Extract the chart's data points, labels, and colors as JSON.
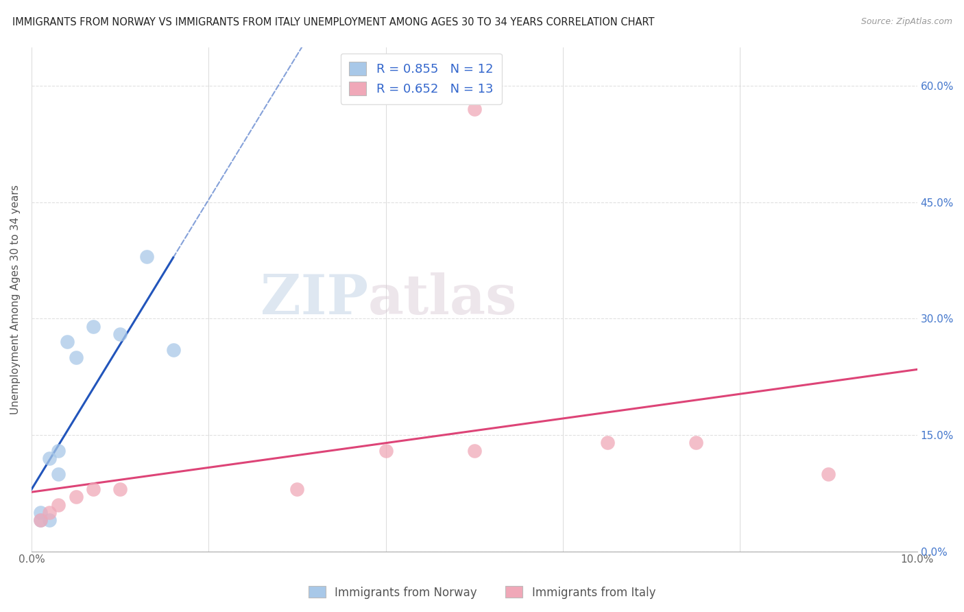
{
  "title": "IMMIGRANTS FROM NORWAY VS IMMIGRANTS FROM ITALY UNEMPLOYMENT AMONG AGES 30 TO 34 YEARS CORRELATION CHART",
  "source": "Source: ZipAtlas.com",
  "ylabel": "Unemployment Among Ages 30 to 34 years",
  "xlim": [
    0.0,
    0.1
  ],
  "ylim": [
    0.0,
    0.65
  ],
  "xticks": [
    0.0,
    0.02,
    0.04,
    0.06,
    0.08,
    0.1
  ],
  "xticklabels": [
    "0.0%",
    "",
    "",
    "",
    "",
    "10.0%"
  ],
  "yticks": [
    0.0,
    0.15,
    0.3,
    0.45,
    0.6
  ],
  "yticklabels": [
    "0.0%",
    "15.0%",
    "30.0%",
    "45.0%",
    "60.0%"
  ],
  "norway_x": [
    0.001,
    0.001,
    0.002,
    0.002,
    0.003,
    0.003,
    0.004,
    0.005,
    0.007,
    0.01,
    0.013,
    0.016
  ],
  "norway_y": [
    0.04,
    0.05,
    0.04,
    0.12,
    0.13,
    0.1,
    0.27,
    0.25,
    0.29,
    0.28,
    0.38,
    0.26
  ],
  "italy_x": [
    0.001,
    0.002,
    0.003,
    0.005,
    0.007,
    0.01,
    0.03,
    0.04,
    0.05,
    0.065,
    0.075,
    0.05,
    0.09
  ],
  "italy_y": [
    0.04,
    0.05,
    0.06,
    0.07,
    0.08,
    0.08,
    0.08,
    0.13,
    0.13,
    0.14,
    0.14,
    0.57,
    0.1
  ],
  "norway_R": 0.855,
  "norway_N": 12,
  "italy_R": 0.652,
  "italy_N": 13,
  "norway_color": "#a8c8e8",
  "norway_line_color": "#2255bb",
  "italy_color": "#f0a8b8",
  "italy_line_color": "#dd4477",
  "watermark_zip": "ZIP",
  "watermark_atlas": "atlas",
  "background_color": "#ffffff",
  "grid_color": "#dddddd"
}
